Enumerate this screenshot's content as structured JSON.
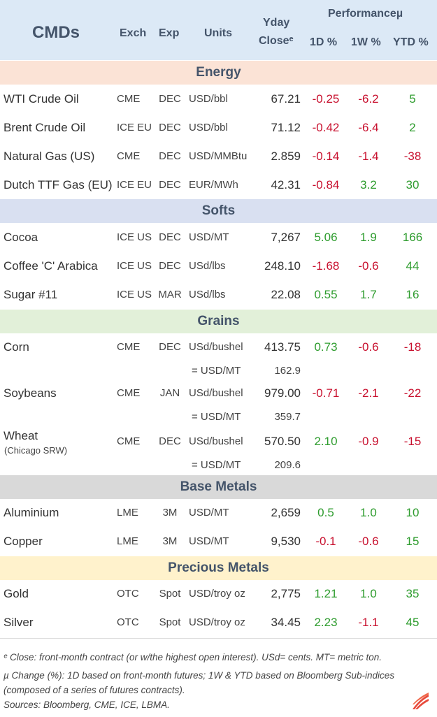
{
  "header": {
    "title": "CMDs",
    "exch": "Exch",
    "exp": "Exp",
    "units": "Units",
    "yday1": "Yday",
    "yday2": "Closeᵉ",
    "performance": "Performanceµ",
    "d1": "1D %",
    "w1": "1W %",
    "ytd": "YTD %"
  },
  "colors": {
    "header_bg": "#dce9f6",
    "energy_bg": "#fbe3d6",
    "softs_bg": "#d9e0f1",
    "grains_bg": "#e2f0d9",
    "base_metals_bg": "#d9d9d9",
    "precious_metals_bg": "#fff2cc",
    "positive": "#2e9c2e",
    "negative": "#c8102e",
    "header_text": "#44546a"
  },
  "sections": [
    {
      "name": "Energy",
      "rows": [
        {
          "name": "WTI Crude Oil",
          "exch": "CME",
          "exp": "DEC",
          "units": "USD/bbl",
          "close": "67.21",
          "d1": "-0.25",
          "w1": "-6.2",
          "ytd": "5"
        },
        {
          "name": "Brent Crude Oil",
          "exch": "ICE EU",
          "exp": "DEC",
          "units": "USD/bbl",
          "close": "71.12",
          "d1": "-0.42",
          "w1": "-6.4",
          "ytd": "2"
        },
        {
          "name": "Natural Gas (US)",
          "exch": "CME",
          "exp": "DEC",
          "units": "USD/MMBtu",
          "close": "2.859",
          "d1": "-0.14",
          "w1": "-1.4",
          "ytd": "-38"
        },
        {
          "name": "Dutch TTF Gas (EU)",
          "exch": "ICE EU",
          "exp": "DEC",
          "units": "EUR/MWh",
          "close": "42.31",
          "d1": "-0.84",
          "w1": "3.2",
          "ytd": "30"
        }
      ]
    },
    {
      "name": "Softs",
      "rows": [
        {
          "name": "Cocoa",
          "exch": "ICE US",
          "exp": "DEC",
          "units": "USD/MT",
          "close": "7,267",
          "d1": "5.06",
          "w1": "1.9",
          "ytd": "166"
        },
        {
          "name": "Coffee 'C' Arabica",
          "exch": "ICE US",
          "exp": "DEC",
          "units": "USd/lbs",
          "close": "248.10",
          "d1": "-1.68",
          "w1": "-0.6",
          "ytd": "44"
        },
        {
          "name": "Sugar #11",
          "exch": "ICE US",
          "exp": "MAR",
          "units": "USd/lbs",
          "close": "22.08",
          "d1": "0.55",
          "w1": "1.7",
          "ytd": "16"
        }
      ]
    },
    {
      "name": "Grains",
      "rows": [
        {
          "name": "Corn",
          "exch": "CME",
          "exp": "DEC",
          "units": "USd/bushel",
          "close": "413.75",
          "d1": "0.73",
          "w1": "-0.6",
          "ytd": "-18",
          "sub_units": "= USD/MT",
          "sub_close": "162.9"
        },
        {
          "name": "Soybeans",
          "exch": "CME",
          "exp": "JAN",
          "units": "USd/bushel",
          "close": "979.00",
          "d1": "-0.71",
          "w1": "-2.1",
          "ytd": "-22",
          "sub_units": "= USD/MT",
          "sub_close": "359.7"
        },
        {
          "name": "Wheat",
          "name_sub": "(Chicago SRW)",
          "exch": "CME",
          "exp": "DEC",
          "units": "USd/bushel",
          "close": "570.50",
          "d1": "2.10",
          "w1": "-0.9",
          "ytd": "-15",
          "sub_units": "= USD/MT",
          "sub_close": "209.6"
        }
      ]
    },
    {
      "name": "Base Metals",
      "rows": [
        {
          "name": "Aluminium",
          "exch": "LME",
          "exp": "3M",
          "units": "USD/MT",
          "close": "2,659",
          "d1": "0.5",
          "w1": "1.0",
          "ytd": "10"
        },
        {
          "name": "Copper",
          "exch": "LME",
          "exp": "3M",
          "units": "USD/MT",
          "close": "9,530",
          "d1": "-0.1",
          "w1": "-0.6",
          "ytd": "15"
        }
      ]
    },
    {
      "name": "Precious Metals",
      "rows": [
        {
          "name": "Gold",
          "exch": "OTC",
          "exp": "Spot",
          "units": "USD/troy oz",
          "close": "2,775",
          "d1": "1.21",
          "w1": "1.0",
          "ytd": "35"
        },
        {
          "name": "Silver",
          "exch": "OTC",
          "exp": "Spot",
          "units": "USD/troy oz",
          "close": "34.45",
          "d1": "2.23",
          "w1": "-1.1",
          "ytd": "45"
        }
      ]
    }
  ],
  "footnotes": [
    "ᵉ Close: front-month contract (or w/the highest open interest). USd= cents. MT= metric ton.",
    "µ Change (%): 1D based on front-month futures; 1W & YTD based on Bloomberg Sub-indices",
    "(composed of a series of futures contracts).",
    "Sources: Bloomberg, CME, ICE, LBMA."
  ],
  "logo": "brand-logo-icon"
}
